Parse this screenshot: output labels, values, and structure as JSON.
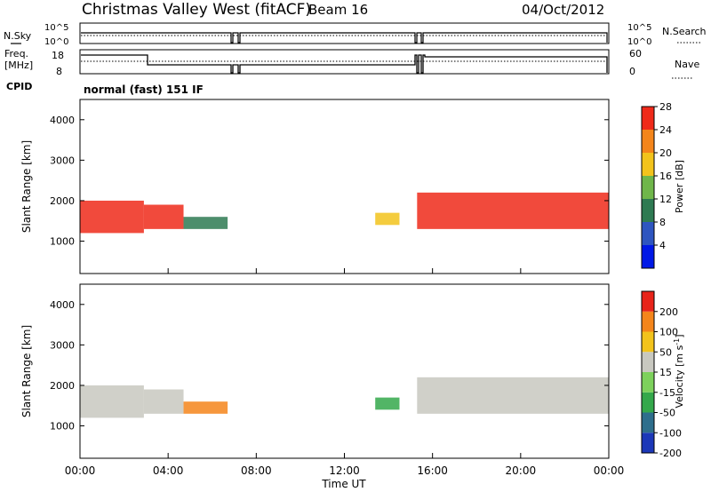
{
  "header": {
    "title": "Christmas Valley West (fitACF)",
    "beam": "Beam 16",
    "date": "04/Oct/2012",
    "cpid_label": "CPID",
    "cpid_value": "normal (fast) 151 IF"
  },
  "noise_panel": {
    "left_label": "N.Sky",
    "right_label": "N.Search",
    "y_ticks_left": [
      "10^5",
      "10^0"
    ],
    "y_ticks_right": [
      "10^5",
      "10^0"
    ]
  },
  "freq_panel": {
    "left_label_1": "Freq.",
    "left_label_2": "[MHz]",
    "right_label": "Nave",
    "y_ticks_left": [
      "18",
      "8"
    ],
    "y_ticks_right": [
      "60",
      "0"
    ]
  },
  "chart_data": [
    {
      "type": "heatmap",
      "name": "power",
      "ylabel": "Slant Range [km]",
      "ylim": [
        200,
        4500
      ],
      "y_ticks": [
        1000,
        2000,
        3000,
        4000
      ],
      "colorbar": {
        "label": "Power [dB]",
        "ticks": [
          "4",
          "8",
          "12",
          "16",
          "20",
          "24",
          "28"
        ],
        "colors": [
          "#0018e6",
          "#2e55c0",
          "#2e7a52",
          "#6fb64a",
          "#f2c31c",
          "#f4851b",
          "#ef2a1a"
        ]
      },
      "bands": [
        {
          "x": [
            0.0,
            2.9
          ],
          "y": [
            1200,
            2000
          ],
          "level": 6
        },
        {
          "x": [
            2.9,
            4.7
          ],
          "y": [
            1300,
            1900
          ],
          "level": 6
        },
        {
          "x": [
            4.7,
            6.7
          ],
          "y": [
            1300,
            1600
          ],
          "level": 2
        },
        {
          "x": [
            13.4,
            14.5
          ],
          "y": [
            1400,
            1700
          ],
          "level": 4
        },
        {
          "x": [
            15.3,
            24.0
          ],
          "y": [
            1300,
            2200
          ],
          "level": 6
        }
      ]
    },
    {
      "type": "heatmap",
      "name": "velocity",
      "ylabel": "Slant Range [km]",
      "xlabel": "Time UT",
      "ylim": [
        200,
        4500
      ],
      "y_ticks": [
        1000,
        2000,
        3000,
        4000
      ],
      "x_ticks": [
        "00:00",
        "04:00",
        "08:00",
        "12:00",
        "16:00",
        "20:00",
        "00:00"
      ],
      "colorbar": {
        "label": "Velocity [m s",
        "label_sup": "-1",
        "label_end": "]",
        "ticks": [
          "200",
          "100",
          "50",
          "15",
          "-15",
          "-50",
          "-100",
          "-200"
        ],
        "colors": [
          "#1c38b8",
          "#2e6e8c",
          "#34a84b",
          "#7dd15c",
          "#c8c8c0",
          "#f2c31c",
          "#f4851b",
          "#e8241a"
        ]
      },
      "bands": [
        {
          "x": [
            0.0,
            2.9
          ],
          "y": [
            1200,
            2000
          ],
          "level": 4
        },
        {
          "x": [
            2.9,
            4.7
          ],
          "y": [
            1300,
            1900
          ],
          "level": 4
        },
        {
          "x": [
            4.7,
            6.7
          ],
          "y": [
            1300,
            1600
          ],
          "level": 6
        },
        {
          "x": [
            13.4,
            14.5
          ],
          "y": [
            1400,
            1700
          ],
          "level": 2
        },
        {
          "x": [
            15.3,
            24.0
          ],
          "y": [
            1300,
            2200
          ],
          "level": 4
        }
      ]
    }
  ]
}
